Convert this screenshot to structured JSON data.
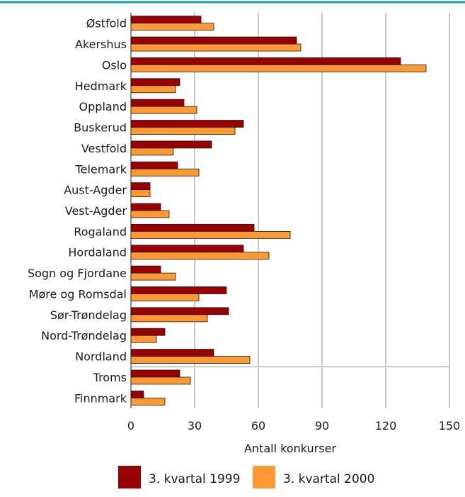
{
  "colors": {
    "top_rule": "#1aa39a",
    "series_1999": "#990000",
    "series_2000": "#ff9933",
    "grid": "#c8c8c8"
  },
  "chart_data": {
    "type": "bar",
    "orientation": "horizontal",
    "categories": [
      "Østfold",
      "Akershus",
      "Oslo",
      "Hedmark",
      "Oppland",
      "Buskerud",
      "Vestfold",
      "Telemark",
      "Aust-Agder",
      "Vest-Agder",
      "Rogaland",
      "Hordaland",
      "Sogn og Fjordane",
      "Møre og Romsdal",
      "Sør-Trøndelag",
      "Nord-Trøndelag",
      "Nordland",
      "Troms",
      "Finnmark"
    ],
    "series": [
      {
        "name": "3. kvartal 1999",
        "values": [
          33,
          78,
          127,
          23,
          25,
          53,
          38,
          22,
          9,
          14,
          58,
          53,
          14,
          45,
          46,
          16,
          39,
          23,
          6
        ]
      },
      {
        "name": "3. kvartal 2000",
        "values": [
          39,
          80,
          139,
          21,
          31,
          49,
          20,
          32,
          9,
          18,
          75,
          65,
          21,
          32,
          36,
          12,
          56,
          28,
          16
        ]
      }
    ],
    "xlabel": "Antall konkurser",
    "xlim": [
      0,
      150
    ],
    "xticks": [
      0,
      30,
      60,
      90,
      120,
      150
    ],
    "grid": true,
    "legend_position": "bottom"
  }
}
